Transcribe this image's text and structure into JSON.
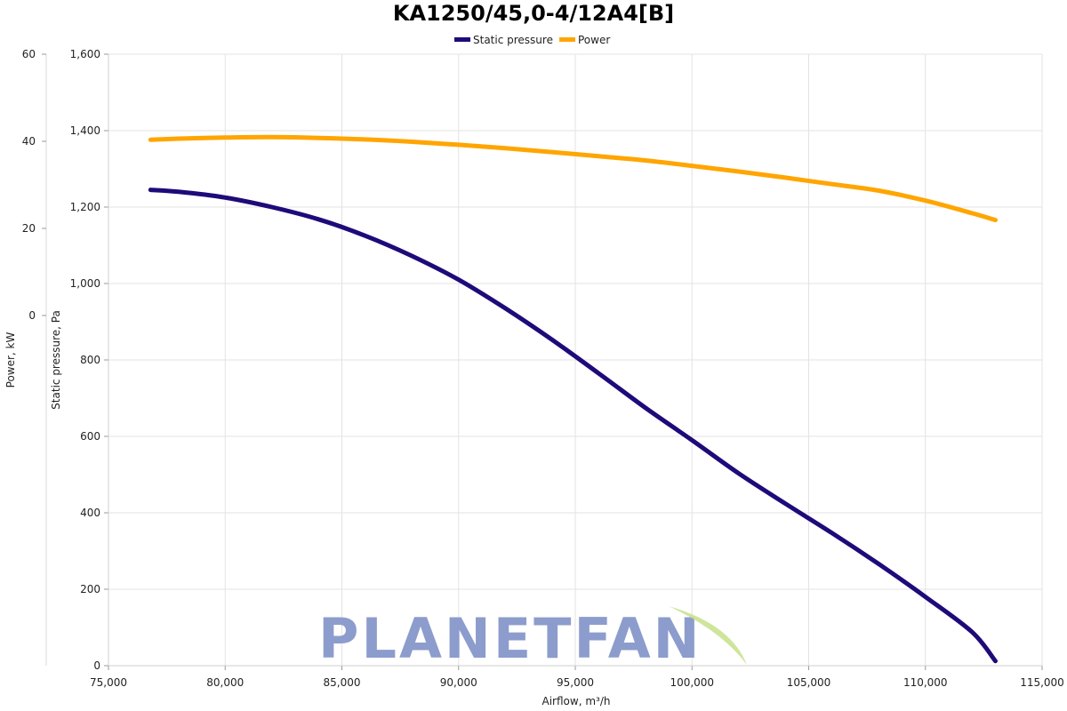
{
  "chart_data": {
    "type": "line",
    "title": "KA1250/45,0-4/12A4[B]",
    "xlabel": "Airflow, m³/h",
    "y_left_outer_label": "Power, kW",
    "y_left_inner_label": "Static pressure, Pa",
    "xlim": [
      75000,
      115000
    ],
    "x_ticks": [
      "75,000",
      "80,000",
      "85,000",
      "90,000",
      "95,000",
      "100,000",
      "105,000",
      "110,000",
      "115,000"
    ],
    "pressure_axis": {
      "range": [
        0,
        1600
      ],
      "ticks": [
        "0",
        "200",
        "400",
        "600",
        "800",
        "1,000",
        "1,200",
        "1,400",
        "1,600"
      ]
    },
    "power_axis": {
      "ticks": [
        "0",
        "20",
        "40",
        "60"
      ]
    },
    "grid": true,
    "legend_position": "top-center",
    "series": [
      {
        "name": "Static pressure",
        "axis": "pressure",
        "color": "#1f0a7a",
        "x": [
          76800,
          78000,
          80000,
          82000,
          84000,
          86000,
          88000,
          90000,
          92000,
          94000,
          96000,
          98000,
          100000,
          102000,
          104000,
          106000,
          108000,
          110000,
          112000,
          113000
        ],
        "y": [
          1245,
          1240,
          1225,
          1200,
          1168,
          1125,
          1072,
          1010,
          935,
          853,
          765,
          675,
          590,
          503,
          424,
          347,
          266,
          180,
          88,
          12
        ]
      },
      {
        "name": "Power",
        "axis": "pressure",
        "color": "#ffa500",
        "x": [
          76800,
          78000,
          80000,
          82000,
          84000,
          86000,
          88000,
          90000,
          92000,
          94000,
          96000,
          98000,
          100000,
          102000,
          104000,
          106000,
          108000,
          110000,
          112000,
          113000
        ],
        "y": [
          1376,
          1379,
          1382,
          1383,
          1381,
          1377,
          1371,
          1363,
          1354,
          1344,
          1333,
          1322,
          1308,
          1293,
          1277,
          1260,
          1243,
          1217,
          1184,
          1166
        ]
      }
    ]
  },
  "watermark": {
    "text": "PLANETFAN",
    "leaf_color": "#c5e08a"
  }
}
